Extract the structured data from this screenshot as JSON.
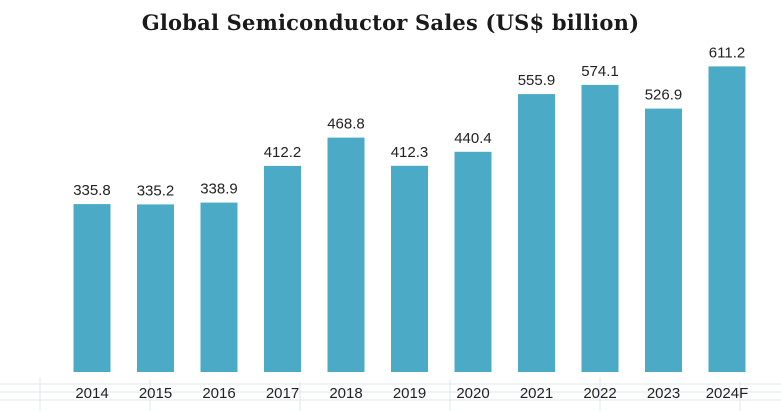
{
  "chart_data": {
    "type": "bar",
    "title": "Global Semiconductor Sales (US$ billion)",
    "xlabel": "",
    "ylabel": "",
    "categories": [
      "2014",
      "2015",
      "2016",
      "2017",
      "2018",
      "2019",
      "2020",
      "2021",
      "2022",
      "2023",
      "2024F"
    ],
    "values": [
      335.8,
      335.2,
      338.9,
      412.2,
      468.8,
      412.3,
      440.4,
      555.9,
      574.1,
      526.9,
      611.2
    ],
    "value_labels": [
      "335.8",
      "335.2",
      "338.9",
      "412.2",
      "468.8",
      "412.3",
      "440.4",
      "555.9",
      "574.1",
      "526.9",
      "611.2"
    ],
    "ylim": [
      0,
      700
    ],
    "grid": false,
    "legend": "none",
    "bar_color": "#4baac6",
    "background_color": "#ffffff",
    "decoration_color": "#dfe6ee"
  }
}
